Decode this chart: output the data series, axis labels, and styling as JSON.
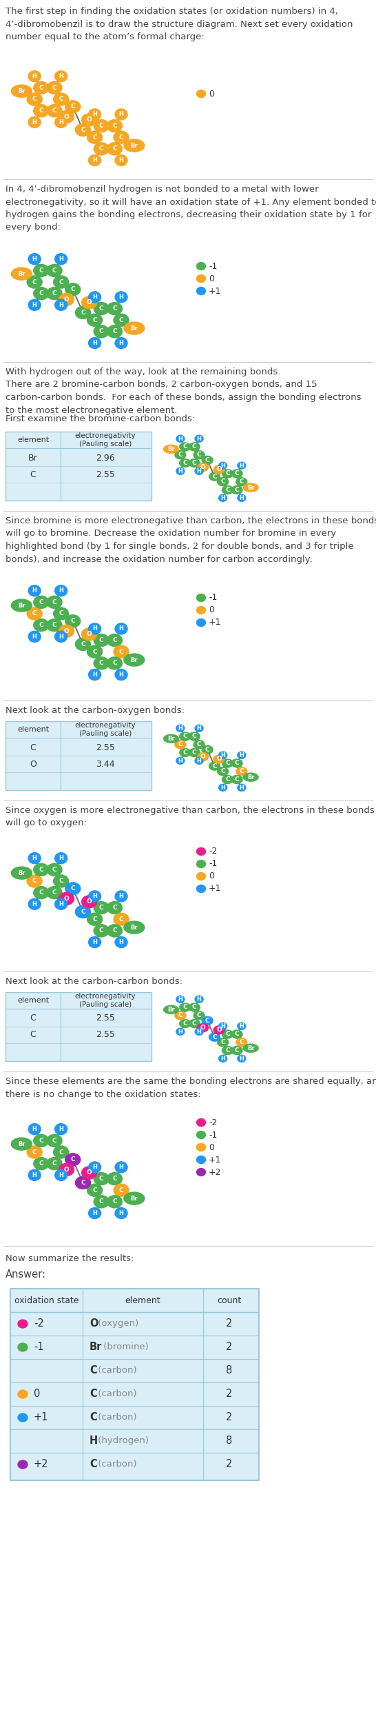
{
  "sections": [
    {
      "text": "The first step in finding the oxidation states (or oxidation numbers) in 4,\n4’-dibromobenzil is to draw the structure diagram. Next set every oxidation\nnumber equal to the atom’s formal charge:",
      "has_molecule": true,
      "mol_colors": {
        "C": "#f5a623",
        "H": "#f5a623",
        "O": "#f5a623",
        "Br": "#f5a623"
      },
      "legend": [
        {
          "color": "#f5a623",
          "label": "0"
        }
      ],
      "has_table": false,
      "divider_after": true
    },
    {
      "text": "In 4, 4’-dibromobenzil hydrogen is not bonded to a metal with lower\nelectronegativity, so it will have an oxidation state of +1. Any element bonded to\nhydrogen gains the bonding electrons, decreasing their oxidation state by 1 for\nevery bond:",
      "has_molecule": true,
      "mol_colors": {
        "C": "#4caf50",
        "H": "#2196f3",
        "O": "#f5a623",
        "Br": "#f5a623"
      },
      "legend": [
        {
          "color": "#4caf50",
          "label": "-1"
        },
        {
          "color": "#f5a623",
          "label": "0"
        },
        {
          "color": "#2196f3",
          "label": "+1"
        }
      ],
      "has_table": false,
      "divider_after": true
    },
    {
      "text": "With hydrogen out of the way, look at the remaining bonds.\nThere are 2 bromine-carbon bonds, 2 carbon-oxygen bonds, and 15\ncarbon-carbon bonds.  For each of these bonds, assign the bonding electrons\nto the most electronegative element.\n\nFirst examine the bromine-carbon bonds:",
      "has_molecule": true,
      "mol_colors": {
        "C": "#4caf50",
        "H": "#2196f3",
        "O": "#f5a623",
        "Br": "#f5a623"
      },
      "legend": [],
      "has_table": true,
      "table_rows": [
        [
          "Br",
          "2.96"
        ],
        [
          "C",
          "2.55"
        ],
        [
          "",
          ""
        ]
      ],
      "table_headers": [
        "element",
        "electronegativity\n(Pauling scale)"
      ],
      "divider_after": true
    },
    {
      "text": "Since bromine is more electronegative than carbon, the electrons in these bonds\nwill go to bromine. Decrease the oxidation number for bromine in every\nhighlighted bond (by 1 for single bonds, 2 for double bonds, and 3 for triple\nbonds), and increase the oxidation number for carbon accordingly:",
      "has_molecule": true,
      "mol_colors": {
        "C": "#4caf50",
        "H": "#2196f3",
        "O": "#f5a623",
        "Br": "#4caf50",
        "C_para": "#f5a623"
      },
      "legend": [
        {
          "color": "#4caf50",
          "label": "-1"
        },
        {
          "color": "#f5a623",
          "label": "0"
        },
        {
          "color": "#2196f3",
          "label": "+1"
        }
      ],
      "has_table": false,
      "divider_after": true
    },
    {
      "text": "Next look at the carbon-oxygen bonds:",
      "has_molecule": true,
      "mol_colors": {
        "C": "#4caf50",
        "H": "#2196f3",
        "O": "#f5a623",
        "Br": "#4caf50",
        "C_para": "#f5a623"
      },
      "legend": [],
      "has_table": true,
      "table_rows": [
        [
          "C",
          "2.55"
        ],
        [
          "O",
          "3.44"
        ],
        [
          "",
          ""
        ]
      ],
      "table_headers": [
        "element",
        "electronegativity\n(Pauling scale)"
      ],
      "divider_after": true
    },
    {
      "text": "Since oxygen is more electronegative than carbon, the electrons in these bonds\nwill go to oxygen:",
      "has_molecule": true,
      "mol_colors": {
        "C": "#4caf50",
        "H": "#2196f3",
        "O": "#e91e8c",
        "Br": "#4caf50",
        "C_para": "#f5a623",
        "C_carbonyl": "#2196f3"
      },
      "legend": [
        {
          "color": "#e91e8c",
          "label": "-2"
        },
        {
          "color": "#4caf50",
          "label": "-1"
        },
        {
          "color": "#f5a623",
          "label": "0"
        },
        {
          "color": "#2196f3",
          "label": "+1"
        }
      ],
      "has_table": false,
      "divider_after": true
    },
    {
      "text": "Next look at the carbon-carbon bonds:",
      "has_molecule": true,
      "mol_colors": {
        "C": "#4caf50",
        "H": "#2196f3",
        "O": "#e91e8c",
        "Br": "#4caf50",
        "C_para": "#f5a623",
        "C_carbonyl": "#2196f3"
      },
      "legend": [],
      "has_table": true,
      "table_rows": [
        [
          "C",
          "2.55"
        ],
        [
          "C",
          "2.55"
        ],
        [
          "",
          ""
        ]
      ],
      "table_headers": [
        "element",
        "electronegativity\n(Pauling scale)"
      ],
      "divider_after": true
    },
    {
      "text": "Since these elements are the same the bonding electrons are shared equally, and\nthere is no change to the oxidation states:",
      "has_molecule": true,
      "mol_colors": {
        "C": "#4caf50",
        "H": "#2196f3",
        "O": "#e91e8c",
        "Br": "#4caf50",
        "C_para": "#f5a623",
        "C_carbonyl": "#9c27b0"
      },
      "legend": [
        {
          "color": "#e91e8c",
          "label": "-2"
        },
        {
          "color": "#4caf50",
          "label": "-1"
        },
        {
          "color": "#f5a623",
          "label": "0"
        },
        {
          "color": "#2196f3",
          "label": "+1"
        },
        {
          "color": "#9c27b0",
          "label": "+2"
        }
      ],
      "has_table": false,
      "divider_after": true
    }
  ],
  "summary_title": "Now summarize the results:",
  "answer_label": "Answer:",
  "summary_rows": [
    {
      "ox": "-2",
      "dot_color": "#e91e8c",
      "element": "O",
      "name": "(oxygen)",
      "count": "2"
    },
    {
      "ox": "-1",
      "dot_color": "#4caf50",
      "element": "Br",
      "name": "(bromine)",
      "count": "2"
    },
    {
      "ox": "",
      "dot_color": null,
      "element": "C",
      "name": "(carbon)",
      "count": "8"
    },
    {
      "ox": "0",
      "dot_color": "#f5a623",
      "element": "C",
      "name": "(carbon)",
      "count": "2"
    },
    {
      "ox": "+1",
      "dot_color": "#2196f3",
      "element": "C",
      "name": "(carbon)",
      "count": "2"
    },
    {
      "ox": "",
      "dot_color": null,
      "element": "H",
      "name": "(hydrogen)",
      "count": "8"
    },
    {
      "ox": "+2",
      "dot_color": "#9c27b0",
      "element": "C",
      "name": "(carbon)",
      "count": "2"
    }
  ],
  "orange": "#f5a623",
  "green": "#4caf50",
  "blue": "#2196f3",
  "pink": "#e91e8c",
  "purple": "#9c27b0",
  "table_bg": "#daeef7",
  "bg": "#ffffff",
  "divider_color": "#cccccc",
  "text_color": "#444444"
}
